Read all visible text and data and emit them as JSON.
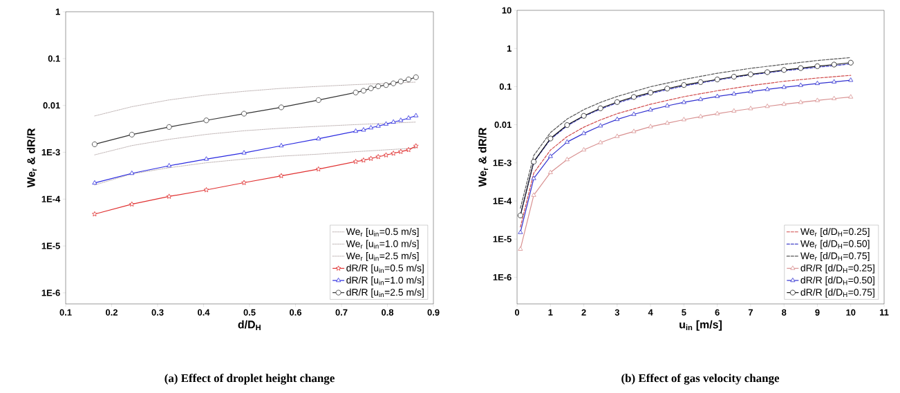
{
  "chart_data": [
    {
      "type": "line",
      "title": "(a) Effect of droplet height change",
      "xlabel": "d/D$_{H}$",
      "ylabel": "We$_{r}$ & dR/R",
      "log": "y",
      "legend": "bottom right",
      "xlim": [
        0.1,
        0.9
      ],
      "ylim": [
        5.8e-07,
        1
      ],
      "xticks": [
        0.1,
        0.2,
        0.3,
        0.4,
        0.5,
        0.6,
        0.7,
        0.8,
        0.9
      ],
      "yticks": [
        {
          "value": 1e-06,
          "label": "1E-6"
        },
        {
          "value": 1e-05,
          "label": "1E-5"
        },
        {
          "value": 0.0001,
          "label": "1E-4"
        },
        {
          "value": 0.001,
          "label": "1E-3"
        },
        0.01,
        0.1,
        1
      ],
      "series": [
        {
          "name": "We$_{r}$ [u$_{in}$=0.5 m/s]",
          "color": "#b8acac",
          "line_style": "dotted",
          "marker": "none",
          "x": [
            0.163,
            0.244,
            0.325,
            0.406,
            0.488,
            0.569,
            0.65,
            0.731,
            0.862
          ],
          "values": [
            0.0002,
            0.000345,
            0.000468,
            0.000597,
            0.000715,
            0.000826,
            0.000912,
            0.00103,
            0.00123
          ]
        },
        {
          "name": "We$_{r}$ [u$_{in}$=1.0 m/s]",
          "color": "#b8acac",
          "line_style": "dotted",
          "marker": "none",
          "x": [
            0.163,
            0.244,
            0.325,
            0.406,
            0.488,
            0.569,
            0.65,
            0.731,
            0.862
          ],
          "values": [
            0.00088,
            0.00139,
            0.00189,
            0.00241,
            0.00288,
            0.00326,
            0.00358,
            0.0039,
            0.00441
          ]
        },
        {
          "name": "We$_{r}$ [u$_{in}$=2.5 m/s]",
          "color": "#b8acac",
          "line_style": "dotted",
          "marker": "none",
          "x": [
            0.163,
            0.244,
            0.325,
            0.406,
            0.488,
            0.569,
            0.65,
            0.731,
            0.862
          ],
          "values": [
            0.00596,
            0.0094,
            0.0131,
            0.0167,
            0.02,
            0.0231,
            0.0255,
            0.0278,
            0.0314
          ]
        },
        {
          "name": "dR/R [u$_{in}$=0.5 m/s]",
          "color": "#e03030",
          "line_style": "solid",
          "marker": "star",
          "x": [
            0.163,
            0.244,
            0.325,
            0.406,
            0.488,
            0.569,
            0.65,
            0.731,
            0.748,
            0.764,
            0.78,
            0.797,
            0.813,
            0.829,
            0.846,
            0.862
          ],
          "values": [
            4.79e-05,
            7.78e-05,
            0.000114,
            0.000157,
            0.000224,
            0.000314,
            0.000436,
            0.000632,
            0.000675,
            0.000735,
            0.0008,
            0.000871,
            0.000948,
            0.00103,
            0.00113,
            0.00136
          ]
        },
        {
          "name": "dR/R [u$_{in}$=1.0 m/s]",
          "color": "#2828e0",
          "line_style": "solid",
          "marker": "triangle",
          "x": [
            0.163,
            0.244,
            0.325,
            0.406,
            0.488,
            0.569,
            0.65,
            0.731,
            0.748,
            0.764,
            0.78,
            0.797,
            0.813,
            0.829,
            0.846,
            0.862
          ],
          "values": [
            0.000221,
            0.000355,
            0.000515,
            0.000715,
            0.00097,
            0.00138,
            0.00194,
            0.00282,
            0.00299,
            0.00333,
            0.00363,
            0.00401,
            0.00441,
            0.0048,
            0.00537,
            0.00604
          ]
        },
        {
          "name": "dR/R [u$_{in}$=2.5 m/s]",
          "color": "#333333",
          "line_style": "solid",
          "marker": "circle",
          "x": [
            0.163,
            0.244,
            0.325,
            0.406,
            0.488,
            0.569,
            0.65,
            0.731,
            0.748,
            0.764,
            0.78,
            0.797,
            0.813,
            0.829,
            0.846,
            0.862
          ],
          "values": [
            0.00148,
            0.00238,
            0.00346,
            0.0048,
            0.00667,
            0.0091,
            0.013,
            0.0189,
            0.0206,
            0.0232,
            0.0256,
            0.0272,
            0.0296,
            0.0325,
            0.0359,
            0.04
          ]
        }
      ]
    },
    {
      "type": "line",
      "title": "(b) Effect of gas velocity change",
      "xlabel": "u$_{in}$ [m/s]",
      "ylabel": "We$_{r}$ & dR/R",
      "log": "y",
      "legend": "bottom right",
      "xlim": [
        0,
        11
      ],
      "ylim": [
        2e-07,
        10
      ],
      "xticks": [
        0,
        1,
        2,
        3,
        4,
        5,
        6,
        7,
        8,
        9,
        10,
        11
      ],
      "yticks": [
        {
          "value": 1e-06,
          "label": "1E-6"
        },
        {
          "value": 1e-05,
          "label": "1E-5"
        },
        {
          "value": 0.0001,
          "label": "1E-4"
        },
        {
          "value": 0.001,
          "label": "1E-3"
        },
        0.01,
        0.1,
        1,
        10
      ],
      "series": [
        {
          "name": "We$_{r}$ [d/D$_{H}$=0.25]",
          "color": "#d04848",
          "line_style": "dashed",
          "marker": "none",
          "x": [
            0.1,
            0.5,
            1,
            1.5,
            2,
            2.5,
            3,
            4,
            5,
            6,
            7,
            8,
            9,
            10
          ],
          "values": [
            2.07e-05,
            0.00054,
            0.00216,
            0.00488,
            0.00863,
            0.0134,
            0.0195,
            0.0345,
            0.0544,
            0.0778,
            0.106,
            0.138,
            0.168,
            0.197
          ]
        },
        {
          "name": "We$_{r}$ [d/D$_{H}$=0.50]",
          "color": "#4040c8",
          "line_style": "dashed",
          "marker": "none",
          "x": [
            0.1,
            0.5,
            1,
            1.5,
            2,
            2.5,
            3,
            4,
            5,
            6,
            7,
            8,
            9,
            10
          ],
          "values": [
            4.33e-05,
            0.00104,
            0.00414,
            0.00935,
            0.0166,
            0.0257,
            0.0374,
            0.0661,
            0.104,
            0.149,
            0.204,
            0.26,
            0.321,
            0.391
          ]
        },
        {
          "name": "We$_{r}$ [d/D$_{H}$=0.75]",
          "color": "#555555",
          "line_style": "dashed",
          "marker": "none",
          "x": [
            0.1,
            0.5,
            1,
            1.5,
            2,
            2.5,
            3,
            4,
            5,
            6,
            7,
            8,
            9,
            10
          ],
          "values": [
            6.49e-05,
            0.00156,
            0.00622,
            0.0141,
            0.0249,
            0.0386,
            0.0552,
            0.0993,
            0.154,
            0.224,
            0.301,
            0.385,
            0.483,
            0.578
          ]
        },
        {
          "name": "dR/R [d/D$_{H}$=0.25]",
          "color": "#d89090",
          "line_style": "solid",
          "marker": "triangle",
          "x": [
            0.1,
            0.5,
            1,
            1.5,
            2,
            2.5,
            3,
            3.5,
            4,
            4.5,
            5,
            5.5,
            6,
            6.5,
            7,
            7.5,
            8,
            8.5,
            9,
            9.5,
            10
          ],
          "values": [
            5.46e-06,
            0.000142,
            0.000558,
            0.00122,
            0.00219,
            0.0034,
            0.00495,
            0.00664,
            0.00891,
            0.011,
            0.0136,
            0.0163,
            0.0195,
            0.0229,
            0.0265,
            0.0303,
            0.0345,
            0.0386,
            0.0433,
            0.0485,
            0.0535
          ]
        },
        {
          "name": "dR/R [d/D$_{H}$=0.50]",
          "color": "#3030d0",
          "line_style": "solid",
          "marker": "triangle",
          "x": [
            0.1,
            0.5,
            1,
            1.5,
            2,
            2.5,
            3,
            3.5,
            4,
            4.5,
            5,
            5.5,
            6,
            6.5,
            7,
            7.5,
            8,
            8.5,
            9,
            9.5,
            10
          ],
          "values": [
            1.5e-05,
            0.00039,
            0.00148,
            0.00352,
            0.00593,
            0.00935,
            0.0138,
            0.0188,
            0.0245,
            0.0313,
            0.0386,
            0.0462,
            0.0553,
            0.064,
            0.0741,
            0.0844,
            0.0961,
            0.108,
            0.121,
            0.133,
            0.147
          ]
        },
        {
          "name": "dR/R [d/D$_{H}$=0.75]",
          "color": "#111111",
          "line_style": "solid",
          "marker": "circle",
          "x": [
            0.1,
            0.5,
            1,
            1.5,
            2,
            2.5,
            3,
            3.5,
            4,
            4.5,
            5,
            5.5,
            6,
            6.5,
            7,
            7.5,
            8,
            8.5,
            9,
            9.5,
            10
          ],
          "values": [
            4.18e-05,
            0.00107,
            0.00435,
            0.0098,
            0.0171,
            0.027,
            0.0393,
            0.0535,
            0.0694,
            0.0887,
            0.11,
            0.131,
            0.154,
            0.182,
            0.21,
            0.239,
            0.273,
            0.306,
            0.343,
            0.378,
            0.424
          ]
        }
      ]
    }
  ]
}
